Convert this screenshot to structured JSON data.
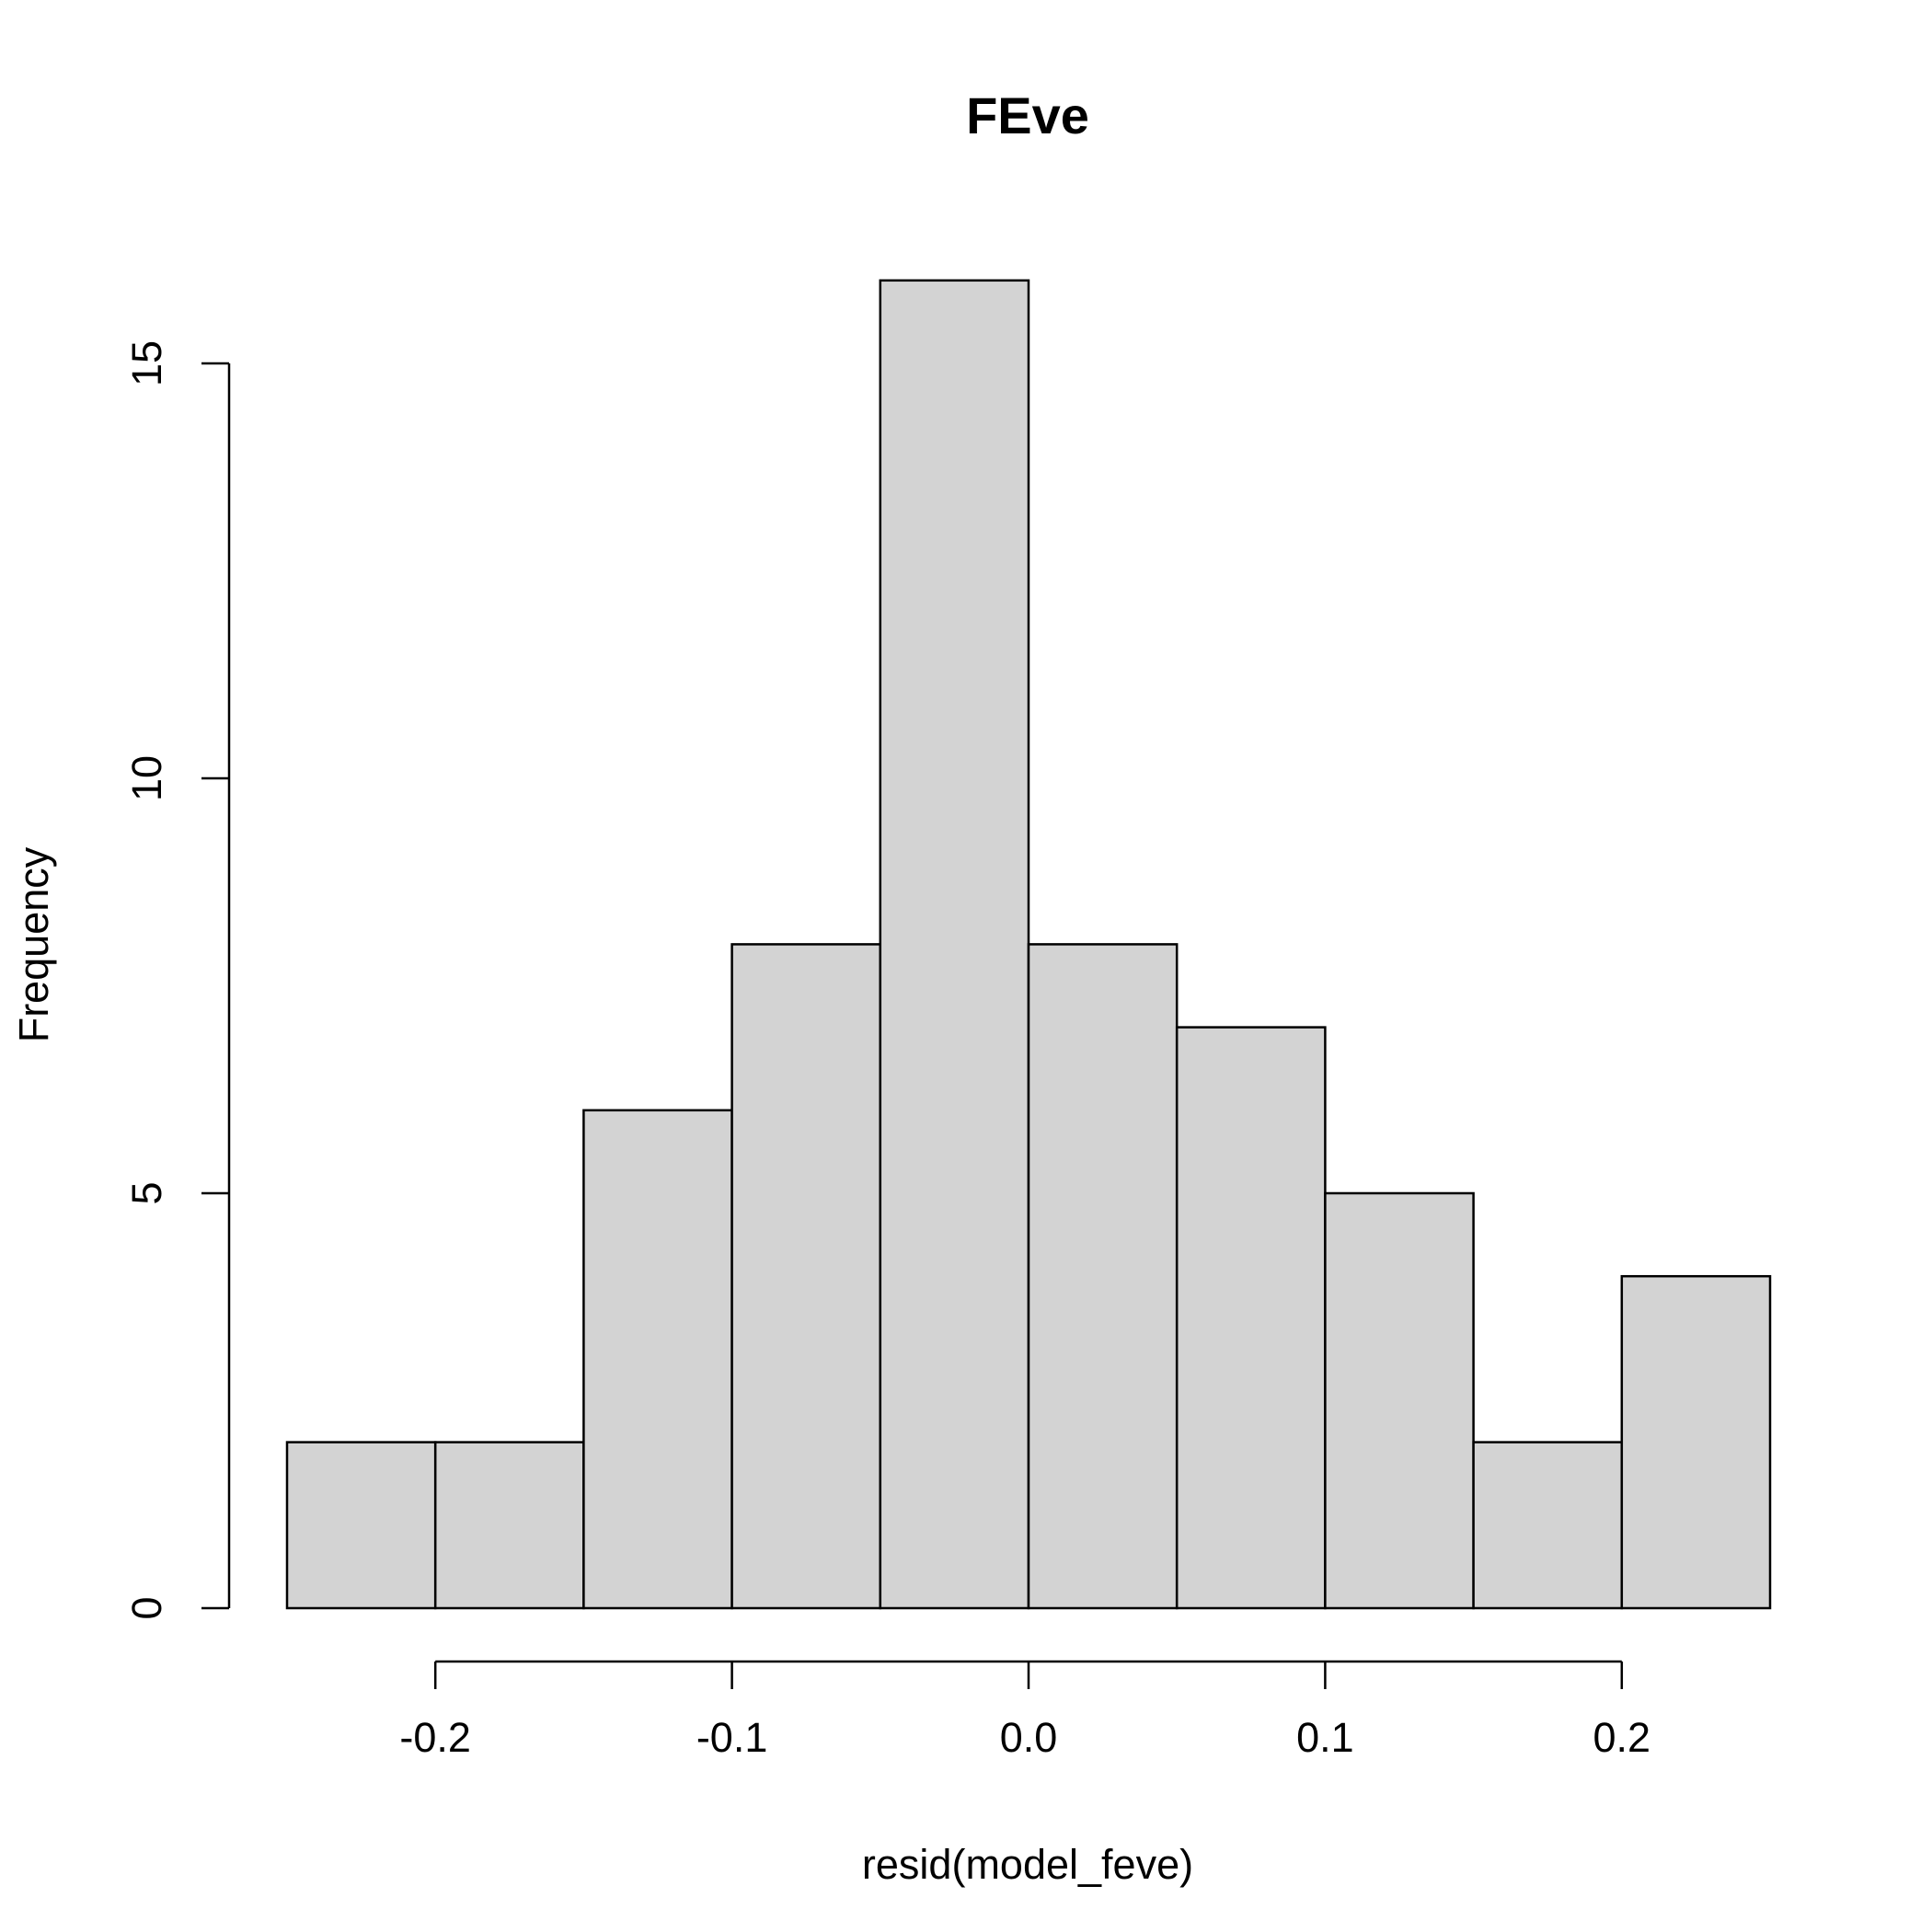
{
  "chart_data": {
    "type": "bar",
    "title": "FEve",
    "xlabel": "resid(model_feve)",
    "ylabel": "Frequency",
    "bins": [
      {
        "start": -0.25,
        "end": -0.2,
        "count": 2
      },
      {
        "start": -0.2,
        "end": -0.15,
        "count": 2
      },
      {
        "start": -0.15,
        "end": -0.1,
        "count": 6
      },
      {
        "start": -0.1,
        "end": -0.05,
        "count": 8
      },
      {
        "start": -0.05,
        "end": 0.0,
        "count": 16
      },
      {
        "start": 0.0,
        "end": 0.05,
        "count": 8
      },
      {
        "start": 0.05,
        "end": 0.1,
        "count": 7
      },
      {
        "start": 0.1,
        "end": 0.15,
        "count": 5
      },
      {
        "start": 0.15,
        "end": 0.2,
        "count": 2
      },
      {
        "start": 0.2,
        "end": 0.25,
        "count": 4
      }
    ],
    "x_ticks": [
      {
        "value": -0.2,
        "label": "-0.2"
      },
      {
        "value": -0.1,
        "label": "-0.1"
      },
      {
        "value": 0.0,
        "label": "0.0"
      },
      {
        "value": 0.1,
        "label": "0.1"
      },
      {
        "value": 0.2,
        "label": "0.2"
      }
    ],
    "y_ticks": [
      {
        "value": 0,
        "label": "0"
      },
      {
        "value": 5,
        "label": "5"
      },
      {
        "value": 10,
        "label": "10"
      },
      {
        "value": 15,
        "label": "15"
      }
    ],
    "xlim": [
      -0.25,
      0.25
    ],
    "ylim": [
      0,
      16
    ],
    "grid": false,
    "colors": {
      "bar_fill": "#d3d3d3",
      "bar_stroke": "#000000"
    }
  }
}
